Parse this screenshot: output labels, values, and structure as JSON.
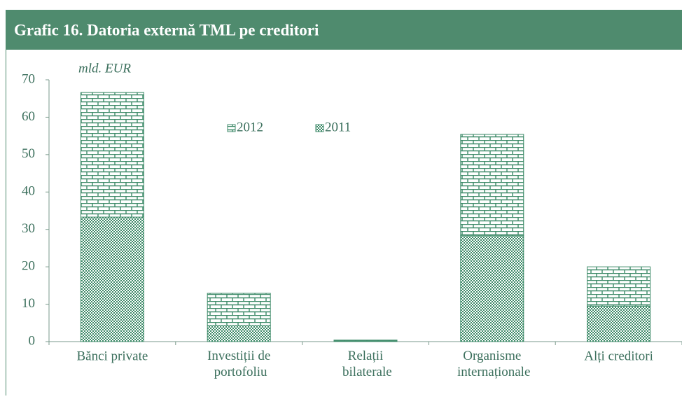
{
  "chart_data": {
    "type": "stacked_bar",
    "title": "Grafic 16. Datoria externă TML pe creditori",
    "ylabel": "mld. EUR",
    "categories": [
      "Bănci private",
      "Investiții de portofoliu",
      "Relații bilaterale",
      "Organisme internaționale",
      "Alți creditori"
    ],
    "series": [
      {
        "name": "2011",
        "color": "#3d8a68",
        "pattern": "checker",
        "values": [
          33.3,
          4.3,
          0.2,
          28.3,
          9.5
        ]
      },
      {
        "name": "2012",
        "color": "#3d8a68",
        "pattern": "brick",
        "values": [
          33.3,
          8.6,
          0.2,
          27.1,
          10.5
        ]
      }
    ],
    "ylim": [
      0,
      70
    ],
    "yticks": [
      0,
      10,
      20,
      30,
      40,
      50,
      60,
      70
    ]
  }
}
